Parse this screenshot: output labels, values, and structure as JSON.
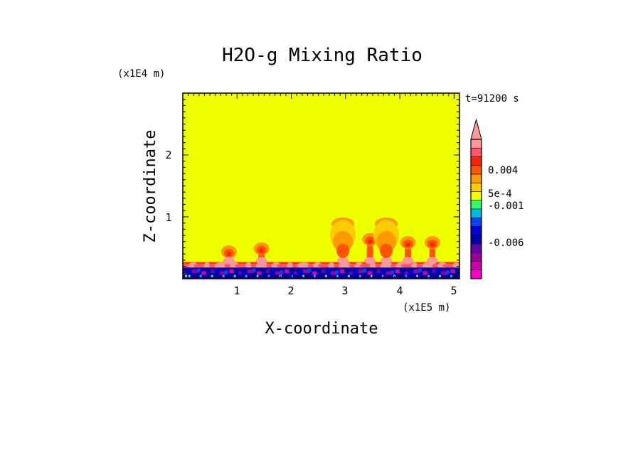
{
  "chart_data": {
    "type": "heatmap",
    "title": "H2O-g Mixing Ratio",
    "time_label": "t=91200 s",
    "xlabel": "X-coordinate",
    "ylabel": "Z-coordinate",
    "x_scale_label": "(x1E5 m)",
    "y_scale_label": "(x1E4 m)",
    "xlim": [
      0,
      5.1
    ],
    "ylim": [
      0,
      3.0
    ],
    "x_ticks": [
      1,
      2,
      3,
      4,
      5
    ],
    "y_ticks": [
      1,
      2
    ],
    "background_value": 0.0,
    "colorbar": {
      "labels": [
        {
          "text": "0.004",
          "value": 0.004
        },
        {
          "text": "5e-4",
          "value": 0.0005
        },
        {
          "text": "-0.001",
          "value": -0.001
        },
        {
          "text": "-0.006",
          "value": -0.006
        }
      ],
      "levels": [
        -0.012,
        -0.0095,
        -0.008,
        -0.0065,
        -0.005,
        -0.003,
        -0.0015,
        -0.001,
        -0.0005,
        0,
        0.0005,
        0.001,
        0.002,
        0.004,
        0.006,
        0.008,
        0.01
      ],
      "colors": [
        "#ff00cc",
        "#cc00aa",
        "#990099",
        "#6600aa",
        "#0000aa",
        "#0000dd",
        "#0044ff",
        "#00bbdd",
        "#33ff66",
        "#eeff00",
        "#ffcc00",
        "#ff9900",
        "#ff5500",
        "#ff2200",
        "#ff5566",
        "#ff9999"
      ],
      "extend": "max"
    },
    "plumes": [
      {
        "x": 0.85,
        "top": 0.55,
        "value": 0.004
      },
      {
        "x": 1.45,
        "top": 0.6,
        "value": 0.004
      },
      {
        "x": 2.95,
        "top": 1.0,
        "value": 0.002
      },
      {
        "x": 3.45,
        "top": 0.75,
        "value": 0.002
      },
      {
        "x": 3.75,
        "top": 1.0,
        "value": 0.002
      },
      {
        "x": 4.15,
        "top": 0.7,
        "value": 0.004
      },
      {
        "x": 4.6,
        "top": 0.7,
        "value": 0.004
      }
    ]
  }
}
